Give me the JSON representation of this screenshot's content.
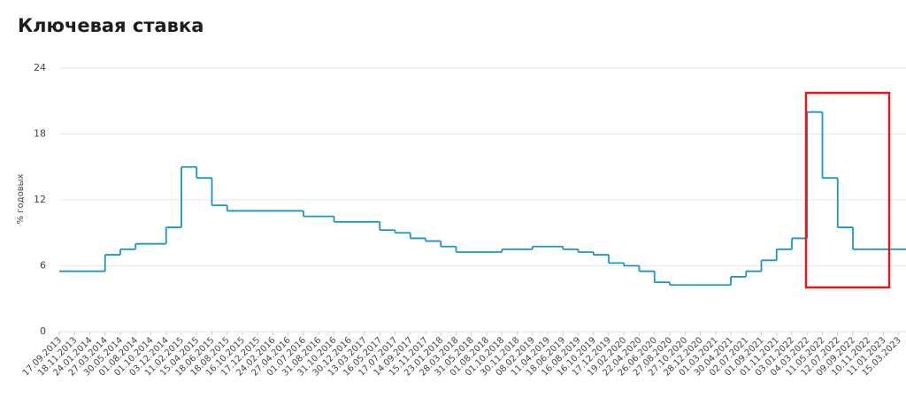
{
  "chart_data": {
    "type": "line",
    "step": true,
    "title": "Ключевая ставка",
    "y_label": "% годовых",
    "categories": [
      "17.09.2013",
      "18.11.2013",
      "24.01.2014",
      "27.03.2014",
      "30.05.2014",
      "01.08.2014",
      "01.10.2014",
      "03.12.2014",
      "11.02.2015",
      "15.04.2015",
      "18.06.2015",
      "18.08.2015",
      "16.10.2015",
      "17.12.2015",
      "24.02.2016",
      "27.04.2016",
      "01.07.2016",
      "31.08.2016",
      "31.10.2016",
      "30.12.2016",
      "13.03.2017",
      "16.05.2017",
      "17.07.2017",
      "14.09.2017",
      "15.11.2017",
      "23.01.2018",
      "28.03.2018",
      "31.05.2018",
      "01.08.2018",
      "01.10.2018",
      "30.11.2018",
      "08.02.2019",
      "11.04.2019",
      "18.06.2019",
      "16.08.2019",
      "16.10.2019",
      "17.12.2019",
      "19.02.2020",
      "22.04.2020",
      "26.06.2020",
      "27.08.2020",
      "27.10.2020",
      "28.12.2020",
      "01.03.2021",
      "30.04.2021",
      "02.07.2021",
      "01.09.2021",
      "01.11.2021",
      "03.01.2022",
      "04.03.2022",
      "11.05.2022",
      "12.07.2022",
      "09.09.2022",
      "10.11.2022",
      "11.01.2023",
      "15.03.2023"
    ],
    "values": [
      5.5,
      5.5,
      5.5,
      7,
      7.5,
      8,
      8,
      9.5,
      15,
      14,
      11.5,
      11,
      11,
      11,
      11,
      11,
      10.5,
      10.5,
      10,
      10,
      10,
      9.25,
      9,
      8.5,
      8.25,
      7.75,
      7.25,
      7.25,
      7.25,
      7.5,
      7.5,
      7.75,
      7.75,
      7.5,
      7.25,
      7,
      6.25,
      6,
      5.5,
      4.5,
      4.25,
      4.25,
      4.25,
      4.25,
      5,
      5.5,
      6.5,
      7.5,
      8.5,
      20,
      14,
      9.5,
      7.5,
      7.5,
      7.5,
      7.5
    ],
    "color": "#1b95c6",
    "ylim": [
      0,
      24
    ],
    "yticks": [
      0,
      6,
      12,
      18,
      24
    ],
    "grid": true
  }
}
